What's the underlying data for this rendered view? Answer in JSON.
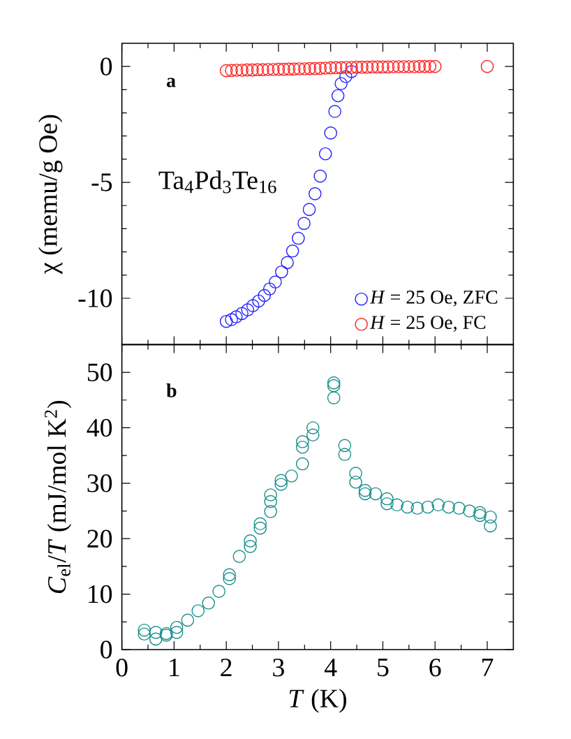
{
  "chart_data": [
    {
      "type": "scatter",
      "ylabel": "χ (memu/g Oe)",
      "annotations": [
        "**a**",
        "Ta$_{4}$Pd$_{3}$Te$_{16}$"
      ],
      "xlim": [
        0,
        7.5
      ],
      "xticks": [
        0,
        1,
        2,
        3,
        4,
        5,
        6,
        7
      ],
      "ylim": [
        -12,
        1
      ],
      "yticks": [
        -10,
        -5,
        0
      ],
      "tick_labels": "y",
      "marker": "circle",
      "legend": "bottom right",
      "series": [
        {
          "name": "*H* = 25 Oe, ZFC",
          "color": "#2222ff",
          "x": [
            2.0,
            2.1,
            2.19,
            2.3,
            2.41,
            2.51,
            2.62,
            2.73,
            2.83,
            2.94,
            3.06,
            3.17,
            3.27,
            3.38,
            3.49,
            3.59,
            3.7,
            3.8,
            3.9,
            4.0,
            4.08,
            4.14,
            4.2,
            4.29,
            4.4
          ],
          "values": [
            -11.0,
            -10.92,
            -10.8,
            -10.66,
            -10.5,
            -10.32,
            -10.12,
            -9.88,
            -9.6,
            -9.3,
            -8.86,
            -8.46,
            -7.96,
            -7.41,
            -6.77,
            -6.17,
            -5.49,
            -4.73,
            -3.77,
            -2.87,
            -1.94,
            -1.26,
            -0.74,
            -0.44,
            -0.22
          ]
        },
        {
          "name": "*H* = 25 Oe, FC",
          "color": "#ff2222",
          "x": [
            2.0,
            2.1,
            2.2,
            2.3,
            2.4,
            2.5,
            2.6,
            2.7,
            2.8,
            2.9,
            3.0,
            3.1,
            3.2,
            3.3,
            3.4,
            3.5,
            3.6,
            3.7,
            3.8,
            3.9,
            4.0,
            4.1,
            4.2,
            4.3,
            4.4,
            4.5,
            4.6,
            4.7,
            4.8,
            4.9,
            5.0,
            5.1,
            5.2,
            5.3,
            5.4,
            5.5,
            5.6,
            5.7,
            5.8,
            5.9,
            6.0,
            7.0
          ],
          "values": [
            -0.18,
            -0.17,
            -0.16,
            -0.16,
            -0.15,
            -0.15,
            -0.14,
            -0.14,
            -0.13,
            -0.13,
            -0.12,
            -0.12,
            -0.11,
            -0.11,
            -0.1,
            -0.1,
            -0.09,
            -0.09,
            -0.08,
            -0.07,
            -0.06,
            -0.05,
            -0.05,
            -0.04,
            -0.04,
            -0.03,
            -0.03,
            -0.03,
            -0.02,
            -0.02,
            -0.02,
            -0.02,
            -0.01,
            -0.01,
            -0.01,
            -0.01,
            -0.01,
            0,
            0,
            0,
            0,
            0
          ]
        }
      ]
    },
    {
      "type": "scatter",
      "xlabel": "*T* (K)",
      "ylabel": "*C*$_{el}$/*T* (mJ/mol K$^{2}$)",
      "annotations": [
        "**b**"
      ],
      "xlim": [
        0,
        7.5
      ],
      "xticks": [
        0,
        1,
        2,
        3,
        4,
        5,
        6,
        7
      ],
      "ylim": [
        0,
        55
      ],
      "yticks": [
        0,
        10,
        20,
        30,
        40,
        50
      ],
      "marker": "circle",
      "series": [
        {
          "color": "#178f8a",
          "x": [
            0.43,
            0.43,
            0.65,
            0.65,
            0.85,
            0.85,
            1.05,
            1.05,
            1.26,
            1.46,
            1.66,
            1.86,
            2.06,
            2.06,
            2.25,
            2.46,
            2.46,
            2.65,
            2.65,
            2.85,
            2.85,
            2.85,
            3.05,
            3.05,
            3.25,
            3.46,
            3.46,
            3.46,
            3.66,
            3.66,
            4.06,
            4.06,
            4.06,
            4.27,
            4.27,
            4.48,
            4.48,
            4.66,
            4.66,
            4.86,
            5.08,
            5.08,
            5.27,
            5.47,
            5.66,
            5.86,
            6.06,
            6.26,
            6.46,
            6.66,
            6.86,
            6.86,
            7.06,
            7.06
          ],
          "values": [
            3.5,
            2.8,
            3.1,
            1.9,
            2.6,
            2.9,
            4.0,
            3.1,
            5.3,
            7.0,
            8.4,
            10.5,
            13.5,
            12.8,
            16.8,
            19.6,
            18.6,
            22.7,
            21.9,
            27.9,
            26.7,
            24.9,
            30.5,
            29.8,
            31.3,
            37.5,
            36.5,
            33.5,
            40.0,
            38.7,
            48.1,
            47.6,
            45.4,
            36.8,
            35.2,
            31.8,
            30.2,
            28.7,
            28.1,
            28.1,
            27.2,
            26.3,
            26.1,
            25.7,
            25.5,
            25.7,
            26.1,
            25.7,
            25.5,
            25.0,
            24.7,
            24.2,
            23.9,
            22.3
          ]
        }
      ]
    }
  ]
}
